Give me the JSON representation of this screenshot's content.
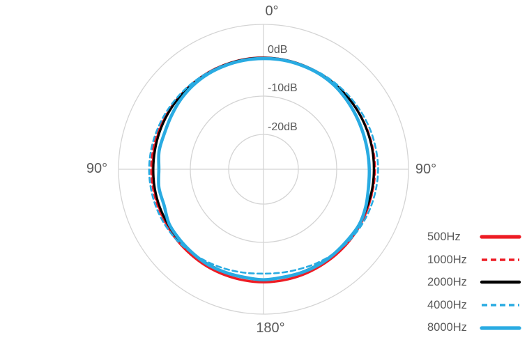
{
  "colors": {
    "red": "#ed1c24",
    "blue": "#29abe2",
    "black": "#000000",
    "grid": "#d4d4d4",
    "label": "#595959",
    "background": "#ffffff"
  },
  "axis_labels": {
    "top": "0°",
    "left": "90°",
    "right": "90°",
    "bottom": "180°"
  },
  "radial_labels": [
    "0dB",
    "-10dB",
    "-20dB"
  ],
  "chart_data": {
    "type": "line",
    "polar": true,
    "angle_unit": "degrees",
    "angle_labels": [
      "0°",
      "90°",
      "180°",
      "90°"
    ],
    "radial_axis": {
      "unit": "dB",
      "tick_values": [
        0,
        -10,
        -20
      ],
      "tick_labels": [
        "0dB",
        "-10dB",
        "-20dB"
      ],
      "direction": "inward_negative"
    },
    "grid": true,
    "legend_position": "right",
    "angles_deg": [
      0,
      10,
      20,
      30,
      40,
      50,
      60,
      70,
      80,
      90,
      100,
      110,
      120,
      130,
      140,
      150,
      160,
      170,
      180,
      190,
      200,
      210,
      220,
      230,
      240,
      250,
      260,
      270,
      280,
      290,
      300,
      310,
      320,
      330,
      340,
      350
    ],
    "series": [
      {
        "name": "500Hz",
        "color": "#ed1c24",
        "style": "solid",
        "width": 3.4,
        "db": [
          0.05,
          0.0,
          -0.05,
          -0.1,
          -0.1,
          -0.15,
          -0.2,
          -0.2,
          -0.25,
          -0.25,
          -0.2,
          -0.1,
          0.0,
          0.1,
          0.15,
          0.2,
          0.3,
          0.35,
          0.4,
          0.35,
          0.3,
          0.25,
          0.15,
          0.1,
          0.0,
          -0.1,
          -0.15,
          -0.2,
          -0.15,
          -0.15,
          -0.1,
          -0.1,
          -0.05,
          0.0,
          0.0,
          0.05
        ]
      },
      {
        "name": "1000Hz",
        "color": "#ed1c24",
        "style": "dashed",
        "width": 2.4,
        "db": [
          0.0,
          0.0,
          -0.05,
          -0.05,
          -0.1,
          -0.1,
          -0.1,
          -0.05,
          0.0,
          0.05,
          0.0,
          -0.05,
          -0.1,
          -0.15,
          -0.2,
          -0.25,
          -0.3,
          -0.3,
          -0.3,
          -0.3,
          -0.25,
          -0.2,
          -0.1,
          0.0,
          0.1,
          0.15,
          0.2,
          0.25,
          0.2,
          0.15,
          0.1,
          0.05,
          0.0,
          -0.05,
          -0.05,
          0.0
        ]
      },
      {
        "name": "2000Hz",
        "color": "#000000",
        "style": "solid",
        "width": 3.2,
        "db": [
          0.0,
          0.0,
          -0.05,
          -0.1,
          -0.1,
          -0.15,
          -0.2,
          -0.25,
          -0.25,
          -0.3,
          -0.3,
          -0.35,
          -0.35,
          -0.4,
          -0.4,
          -0.45,
          -0.45,
          -0.5,
          -0.15,
          -0.5,
          -0.45,
          -0.45,
          -0.4,
          -0.35,
          -0.35,
          -0.3,
          -0.3,
          -0.35,
          -0.35,
          -0.3,
          -0.25,
          -0.2,
          -0.15,
          -0.1,
          -0.05,
          0.0
        ]
      },
      {
        "name": "4000Hz",
        "color": "#29abe2",
        "style": "dashed",
        "width": 2.6,
        "db": [
          -0.1,
          -0.1,
          -0.05,
          0.05,
          0.15,
          0.3,
          0.45,
          0.6,
          0.7,
          0.8,
          0.7,
          0.55,
          0.35,
          0.0,
          -0.45,
          -0.9,
          -1.4,
          -1.7,
          -1.85,
          -1.65,
          -1.3,
          -0.9,
          -0.4,
          0.1,
          0.4,
          0.6,
          0.7,
          0.75,
          0.65,
          0.5,
          0.35,
          0.2,
          0.1,
          0.0,
          -0.05,
          -0.1
        ]
      },
      {
        "name": "8000Hz",
        "color": "#29abe2",
        "style": "solid",
        "width": 4.6,
        "db": [
          -0.2,
          -0.15,
          -0.2,
          -0.25,
          -0.45,
          -0.85,
          -1.2,
          -1.45,
          -1.55,
          -1.5,
          -1.3,
          -0.7,
          -0.25,
          -0.4,
          -0.35,
          -0.3,
          -0.35,
          -0.45,
          -0.25,
          -0.45,
          -0.4,
          -0.3,
          -0.45,
          -0.55,
          -0.65,
          -1.5,
          -1.4,
          -1.8,
          -1.45,
          -1.6,
          -1.3,
          -0.85,
          -0.5,
          -0.3,
          -0.25,
          -0.2
        ]
      }
    ]
  }
}
